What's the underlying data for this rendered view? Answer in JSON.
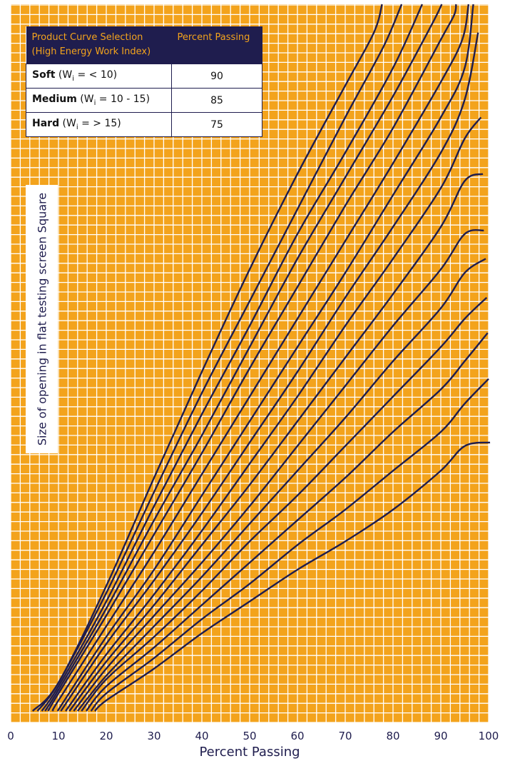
{
  "chart_data": {
    "type": "line",
    "xlabel": "Percent Passing",
    "ylabel": "Size of opening in flat testing screen Square",
    "xlim": [
      0,
      100
    ],
    "x_ticks": [
      "0",
      "10",
      "20",
      "30",
      "40",
      "50",
      "60",
      "70",
      "80",
      "90",
      "100"
    ],
    "grid": true,
    "series": [
      {
        "x": [
          4.6,
          10,
          20,
          30,
          40,
          50,
          60,
          70,
          76,
          77.7
        ],
        "y": [
          0,
          0.04,
          0.177,
          0.33,
          0.48,
          0.625,
          0.76,
          0.885,
          0.96,
          1.0
        ]
      },
      {
        "x": [
          5.6,
          10,
          20,
          30,
          40,
          50,
          60,
          70,
          78,
          81.8
        ],
        "y": [
          0,
          0.04,
          0.167,
          0.31,
          0.45,
          0.58,
          0.71,
          0.84,
          0.94,
          1.0
        ]
      },
      {
        "x": [
          6.5,
          10,
          20,
          30,
          40,
          50,
          60,
          70,
          80,
          86.1
        ],
        "y": [
          0,
          0.035,
          0.155,
          0.29,
          0.42,
          0.545,
          0.675,
          0.79,
          0.91,
          1.0
        ]
      },
      {
        "x": [
          7.2,
          10,
          20,
          30,
          40,
          50,
          60,
          70,
          80,
          88,
          90.2
        ],
        "y": [
          0,
          0.03,
          0.145,
          0.27,
          0.39,
          0.515,
          0.64,
          0.755,
          0.87,
          0.97,
          1.0
        ]
      },
      {
        "x": [
          7.8,
          10,
          20,
          30,
          40,
          50,
          60,
          70,
          80,
          90,
          92.8,
          93.2
        ],
        "y": [
          0,
          0.025,
          0.135,
          0.25,
          0.365,
          0.485,
          0.6,
          0.715,
          0.825,
          0.95,
          0.985,
          1.0
        ]
      },
      {
        "x": [
          8.8,
          10,
          20,
          30,
          40,
          50,
          60,
          70,
          80,
          90,
          94.5,
          95.8
        ],
        "y": [
          0,
          0.015,
          0.12,
          0.225,
          0.335,
          0.445,
          0.555,
          0.665,
          0.775,
          0.89,
          0.95,
          1.0
        ]
      },
      {
        "x": [
          9.8,
          20,
          30,
          40,
          50,
          60,
          70,
          80,
          90,
          95,
          96.8
        ],
        "y": [
          0,
          0.105,
          0.2,
          0.305,
          0.41,
          0.515,
          0.62,
          0.73,
          0.84,
          0.91,
          1.0
        ]
      },
      {
        "x": [
          10.5,
          20,
          30,
          40,
          50,
          60,
          70,
          80,
          90,
          95,
          97.8
        ],
        "y": [
          0,
          0.095,
          0.185,
          0.28,
          0.38,
          0.48,
          0.585,
          0.685,
          0.79,
          0.865,
          0.96
        ]
      },
      {
        "x": [
          11.5,
          20,
          30,
          40,
          50,
          60,
          70,
          80,
          90,
          95,
          98.4
        ],
        "y": [
          0,
          0.08,
          0.165,
          0.255,
          0.35,
          0.445,
          0.545,
          0.64,
          0.74,
          0.81,
          0.84
        ]
      },
      {
        "x": [
          12.3,
          20,
          30,
          40,
          50,
          60,
          70,
          80,
          90,
          95,
          98.8
        ],
        "y": [
          0,
          0.07,
          0.15,
          0.235,
          0.32,
          0.41,
          0.5,
          0.59,
          0.685,
          0.75,
          0.76
        ]
      },
      {
        "x": [
          13.2,
          20,
          30,
          40,
          50,
          60,
          70,
          80,
          90,
          95,
          99.0
        ],
        "y": [
          0,
          0.06,
          0.135,
          0.21,
          0.29,
          0.375,
          0.46,
          0.545,
          0.625,
          0.675,
          0.68
        ]
      },
      {
        "x": [
          14,
          20,
          30,
          40,
          50,
          60,
          70,
          80,
          90,
          95,
          99.4
        ],
        "y": [
          0,
          0.05,
          0.12,
          0.19,
          0.265,
          0.34,
          0.415,
          0.495,
          0.57,
          0.62,
          0.64
        ]
      },
      {
        "x": [
          14.8,
          20,
          30,
          40,
          50,
          60,
          70,
          80,
          90,
          95,
          99.6
        ],
        "y": [
          0,
          0.045,
          0.105,
          0.17,
          0.24,
          0.305,
          0.375,
          0.445,
          0.515,
          0.555,
          0.585
        ]
      },
      {
        "x": [
          15.8,
          20,
          30,
          40,
          50,
          60,
          70,
          80,
          90,
          95,
          99.8
        ],
        "y": [
          0,
          0.035,
          0.09,
          0.15,
          0.21,
          0.27,
          0.33,
          0.395,
          0.455,
          0.495,
          0.535
        ]
      },
      {
        "x": [
          16.8,
          20,
          30,
          40,
          50,
          60,
          70,
          80,
          90,
          95,
          100
        ],
        "y": [
          0,
          0.025,
          0.075,
          0.13,
          0.18,
          0.235,
          0.285,
          0.34,
          0.395,
          0.435,
          0.47
        ]
      },
      {
        "x": [
          17.6,
          20,
          30,
          40,
          50,
          60,
          70,
          80,
          90,
          95,
          100.3
        ],
        "y": [
          0,
          0.015,
          0.06,
          0.11,
          0.155,
          0.2,
          0.24,
          0.285,
          0.34,
          0.375,
          0.38
        ]
      }
    ],
    "colors": {
      "background": "#f3a31c",
      "grid": "#ffffff",
      "lines": "#1f1d4e"
    }
  },
  "table": {
    "header": [
      "Product Curve Selection",
      "(High Energy Work Index)",
      "Percent Passing"
    ],
    "rows": [
      {
        "name": "Soft",
        "expr_pre": " (W",
        "sub": "i",
        "expr_post": " = < 10)",
        "value": "90"
      },
      {
        "name": "Medium",
        "expr_pre": " (W",
        "sub": "i",
        "expr_post": " = 10 - 15)",
        "value": "85"
      },
      {
        "name": "Hard",
        "expr_pre": " (W",
        "sub": "i",
        "expr_post": " = > 15)",
        "value": "75"
      }
    ]
  }
}
